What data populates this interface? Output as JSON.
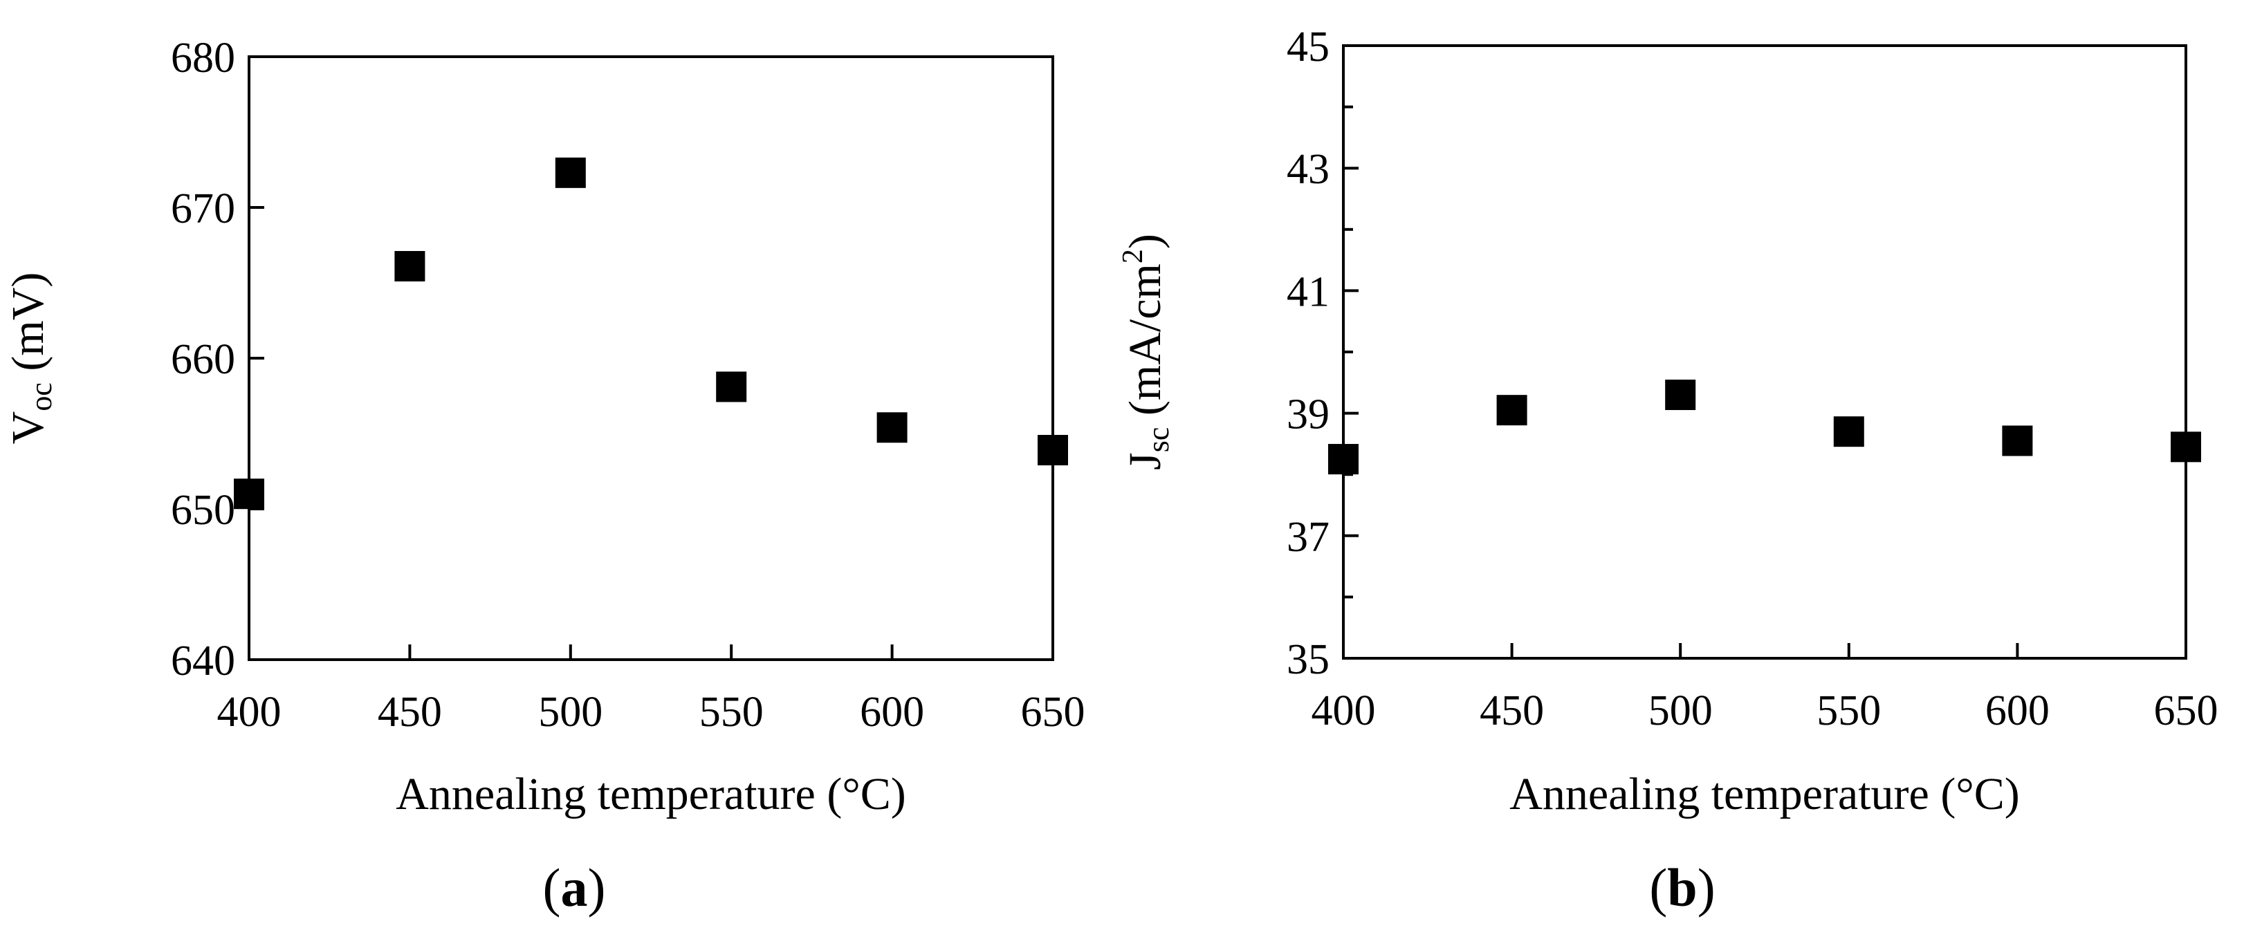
{
  "chart_data": [
    {
      "type": "scatter",
      "panel": "a",
      "title": "",
      "xlabel": "Annealing temperature (°C)",
      "ylabel": {
        "main": "V",
        "sub": "oc",
        "unit": " (mV)"
      },
      "xlim": [
        400,
        650
      ],
      "ylim": [
        640,
        680
      ],
      "xticks": [
        400,
        450,
        500,
        550,
        600,
        650
      ],
      "yticks": [
        640,
        650,
        660,
        670,
        680
      ],
      "minor_yticks": [],
      "grid": false,
      "marker": "square",
      "x": [
        400,
        450,
        500,
        550,
        600,
        650
      ],
      "y": [
        651,
        666.1,
        672.3,
        658.1,
        655.4,
        653.9
      ]
    },
    {
      "type": "scatter",
      "panel": "b",
      "title": "",
      "xlabel": "Annealing temperature (°C)",
      "ylabel": {
        "main": "J",
        "sub": "sc",
        "unit": " (mA/cm",
        "sup": "2",
        "end": ")"
      },
      "xlim": [
        400,
        650
      ],
      "ylim": [
        35,
        45
      ],
      "xticks": [
        400,
        450,
        500,
        550,
        600,
        650
      ],
      "yticks": [
        35,
        37,
        39,
        41,
        43,
        45
      ],
      "minor_yticks": [
        36,
        38,
        40,
        42,
        44
      ],
      "grid": false,
      "marker": "square",
      "x": [
        400,
        450,
        500,
        550,
        600,
        650
      ],
      "y": [
        38.25,
        39.05,
        39.3,
        38.7,
        38.55,
        38.45
      ]
    }
  ],
  "panel_labels": {
    "a": {
      "open": "(",
      "letter": "a",
      "close": ")"
    },
    "b": {
      "open": "(",
      "letter": "b",
      "close": ")"
    }
  },
  "colors": {
    "marker": "#000000",
    "axis": "#000000"
  }
}
